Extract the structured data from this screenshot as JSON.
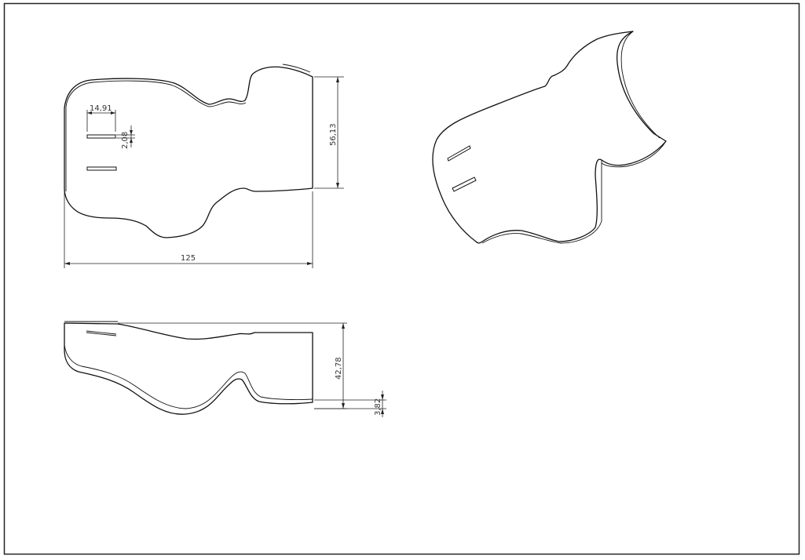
{
  "drawing": {
    "title": "",
    "dimensions": {
      "overall_length": "125",
      "height_top_view": "56,13",
      "slot_length": "14,91",
      "slot_width": "2,08",
      "side_height": "42,78",
      "thickness": "3,82"
    }
  }
}
